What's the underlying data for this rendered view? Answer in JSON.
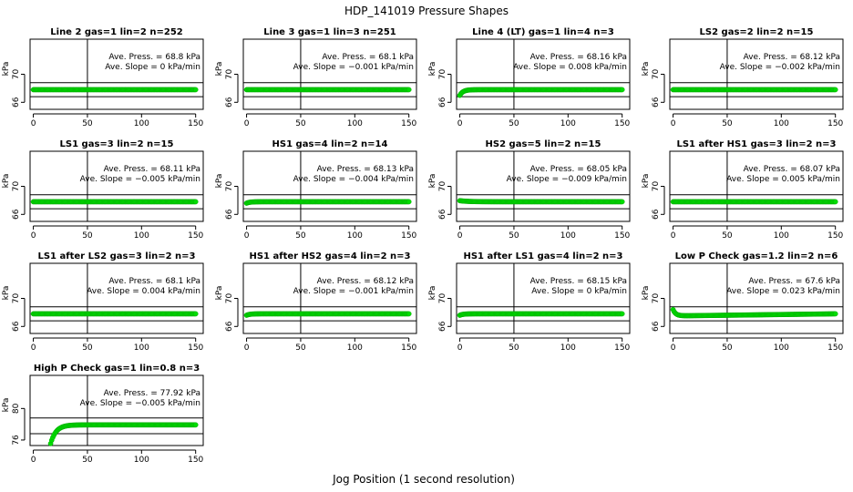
{
  "figure": {
    "title": "HDP_141019  Pressure Shapes",
    "xlabel": "Jog Position (1 second resolution)"
  },
  "colors": {
    "points": "#00dd00",
    "point_outline": "#00aa00",
    "lines": "#000000"
  },
  "chart_data": [
    {
      "type": "scatter",
      "title": "Line 2 gas=1 lin=2 n=252",
      "ylabel": "kPa",
      "xlim": [
        -3,
        157
      ],
      "ylim": [
        65,
        75
      ],
      "x_ticks": [
        0,
        50,
        100,
        150
      ],
      "y_ticks": [
        66,
        70
      ],
      "hlines": [
        68.8,
        66.8
      ],
      "vline": 50,
      "annotation": [
        "Ave. Press. =  68.8  kPa",
        "Ave. Slope = 0  kPa/min"
      ],
      "series": [
        {
          "x_start": 0,
          "x_end": 150,
          "x_step": 1,
          "y_start": 67.8,
          "y_end": 67.8,
          "transient": 0,
          "tau": 1
        }
      ]
    },
    {
      "type": "scatter",
      "title": "Line 3 gas=1 lin=3 n=251",
      "ylabel": "kPa",
      "xlim": [
        -3,
        157
      ],
      "ylim": [
        65,
        75
      ],
      "x_ticks": [
        0,
        50,
        100,
        150
      ],
      "y_ticks": [
        66,
        70
      ],
      "hlines": [
        68.8,
        66.8
      ],
      "vline": 50,
      "annotation": [
        "Ave. Press. = 68.1  kPa",
        "Ave. Slope = −0.001  kPa/min"
      ],
      "series": [
        {
          "x_start": 0,
          "x_end": 150,
          "x_step": 1,
          "y_start": 67.8,
          "y_end": 67.8,
          "transient": 0,
          "tau": 1
        }
      ]
    },
    {
      "type": "scatter",
      "title": "Line 4 (LT) gas=1 lin=4 n=3",
      "ylabel": "kPa",
      "xlim": [
        -3,
        157
      ],
      "ylim": [
        65,
        75
      ],
      "x_ticks": [
        0,
        50,
        100,
        150
      ],
      "y_ticks": [
        66,
        70
      ],
      "hlines": [
        68.8,
        66.8
      ],
      "vline": 50,
      "annotation": [
        "Ave. Press. = 68.16  kPa",
        "Ave. Slope = 0.008  kPa/min"
      ],
      "series": [
        {
          "x_start": 0,
          "x_end": 150,
          "x_step": 1,
          "y_start": 67.8,
          "y_end": 67.8,
          "transient": -0.8,
          "tau": 3
        }
      ]
    },
    {
      "type": "scatter",
      "title": "LS2 gas=2 lin=2 n=15",
      "ylabel": "kPa",
      "xlim": [
        -3,
        157
      ],
      "ylim": [
        65,
        75
      ],
      "x_ticks": [
        0,
        50,
        100,
        150
      ],
      "y_ticks": [
        66,
        70
      ],
      "hlines": [
        68.8,
        66.8
      ],
      "vline": 50,
      "annotation": [
        "Ave. Press. = 68.12  kPa",
        "Ave. Slope = −0.002  kPa/min"
      ],
      "series": [
        {
          "x_start": 0,
          "x_end": 150,
          "x_step": 1,
          "y_start": 67.8,
          "y_end": 67.8,
          "transient": 0,
          "tau": 1
        }
      ]
    },
    {
      "type": "scatter",
      "title": "LS1 gas=3 lin=2 n=15",
      "ylabel": "kPa",
      "xlim": [
        -3,
        157
      ],
      "ylim": [
        65,
        75
      ],
      "x_ticks": [
        0,
        50,
        100,
        150
      ],
      "y_ticks": [
        66,
        70
      ],
      "hlines": [
        68.8,
        66.8
      ],
      "vline": 50,
      "annotation": [
        "Ave. Press. = 68.11  kPa",
        "Ave. Slope = −0.005  kPa/min"
      ],
      "series": [
        {
          "x_start": 0,
          "x_end": 150,
          "x_step": 1,
          "y_start": 67.8,
          "y_end": 67.8,
          "transient": 0,
          "tau": 1
        }
      ]
    },
    {
      "type": "scatter",
      "title": "HS1 gas=4 lin=2 n=14",
      "ylabel": "kPa",
      "xlim": [
        -3,
        157
      ],
      "ylim": [
        65,
        75
      ],
      "x_ticks": [
        0,
        50,
        100,
        150
      ],
      "y_ticks": [
        66,
        70
      ],
      "hlines": [
        68.8,
        66.8
      ],
      "vline": 50,
      "annotation": [
        "Ave. Press. = 68.13  kPa",
        "Ave. Slope = −0.004  kPa/min"
      ],
      "series": [
        {
          "x_start": 0,
          "x_end": 150,
          "x_step": 1,
          "y_start": 67.8,
          "y_end": 67.8,
          "transient": -0.2,
          "tau": 3
        }
      ]
    },
    {
      "type": "scatter",
      "title": "HS2 gas=5 lin=2 n=15",
      "ylabel": "kPa",
      "xlim": [
        -3,
        157
      ],
      "ylim": [
        65,
        75
      ],
      "x_ticks": [
        0,
        50,
        100,
        150
      ],
      "y_ticks": [
        66,
        70
      ],
      "hlines": [
        68.8,
        66.8
      ],
      "vline": 50,
      "annotation": [
        "Ave. Press. = 68.05  kPa",
        "Ave. Slope = −0.009  kPa/min"
      ],
      "series": [
        {
          "x_start": 0,
          "x_end": 150,
          "x_step": 1,
          "y_start": 67.8,
          "y_end": 67.8,
          "transient": 0.15,
          "tau": 8
        }
      ]
    },
    {
      "type": "scatter",
      "title": "LS1 after HS1 gas=3 lin=2 n=3",
      "ylabel": "kPa",
      "xlim": [
        -3,
        157
      ],
      "ylim": [
        65,
        75
      ],
      "x_ticks": [
        0,
        50,
        100,
        150
      ],
      "y_ticks": [
        66,
        70
      ],
      "hlines": [
        68.8,
        66.8
      ],
      "vline": 50,
      "annotation": [
        "Ave. Press. = 68.07  kPa",
        "Ave. Slope = 0.005  kPa/min"
      ],
      "series": [
        {
          "x_start": 0,
          "x_end": 150,
          "x_step": 1,
          "y_start": 67.8,
          "y_end": 67.8,
          "transient": 0,
          "tau": 1
        }
      ]
    },
    {
      "type": "scatter",
      "title": "LS1 after LS2 gas=3 lin=2 n=3",
      "ylabel": "kPa",
      "xlim": [
        -3,
        157
      ],
      "ylim": [
        65,
        75
      ],
      "x_ticks": [
        0,
        50,
        100,
        150
      ],
      "y_ticks": [
        66,
        70
      ],
      "hlines": [
        68.8,
        66.8
      ],
      "vline": 50,
      "annotation": [
        "Ave. Press. = 68.1  kPa",
        "Ave. Slope = 0.004  kPa/min"
      ],
      "series": [
        {
          "x_start": 0,
          "x_end": 150,
          "x_step": 1,
          "y_start": 67.8,
          "y_end": 67.8,
          "transient": 0,
          "tau": 1
        }
      ]
    },
    {
      "type": "scatter",
      "title": "HS1 after HS2 gas=4 lin=2 n=3",
      "ylabel": "kPa",
      "xlim": [
        -3,
        157
      ],
      "ylim": [
        65,
        75
      ],
      "x_ticks": [
        0,
        50,
        100,
        150
      ],
      "y_ticks": [
        66,
        70
      ],
      "hlines": [
        68.8,
        66.8
      ],
      "vline": 50,
      "annotation": [
        "Ave. Press. = 68.12  kPa",
        "Ave. Slope = −0.001  kPa/min"
      ],
      "series": [
        {
          "x_start": 0,
          "x_end": 150,
          "x_step": 1,
          "y_start": 67.8,
          "y_end": 67.8,
          "transient": -0.2,
          "tau": 3
        }
      ]
    },
    {
      "type": "scatter",
      "title": "HS1 after LS1 gas=4 lin=2 n=3",
      "ylabel": "kPa",
      "xlim": [
        -3,
        157
      ],
      "ylim": [
        65,
        75
      ],
      "x_ticks": [
        0,
        50,
        100,
        150
      ],
      "y_ticks": [
        66,
        70
      ],
      "hlines": [
        68.8,
        66.8
      ],
      "vline": 50,
      "annotation": [
        "Ave. Press. = 68.15  kPa",
        "Ave. Slope = 0  kPa/min"
      ],
      "series": [
        {
          "x_start": 0,
          "x_end": 150,
          "x_step": 1,
          "y_start": 67.8,
          "y_end": 67.8,
          "transient": -0.2,
          "tau": 3
        }
      ]
    },
    {
      "type": "scatter",
      "title": "Low P Check gas=1.2 lin=2 n=6",
      "ylabel": "kPa",
      "xlim": [
        -3,
        157
      ],
      "ylim": [
        65,
        75
      ],
      "x_ticks": [
        0,
        50,
        100,
        150
      ],
      "y_ticks": [
        66,
        70
      ],
      "hlines": [
        68.8,
        66.8
      ],
      "vline": 50,
      "annotation": [
        "Ave. Press. = 67.6  kPa",
        "Ave. Slope = 0.023  kPa/min"
      ],
      "series": [
        {
          "x_start": 0,
          "x_end": 150,
          "x_step": 1,
          "y_start": 67.5,
          "y_end": 67.8,
          "transient": 0.9,
          "tau": 2.5
        }
      ]
    },
    {
      "type": "scatter",
      "title": "High P Check gas=1 lin=0.8 n=3",
      "ylabel": "kPa",
      "xlim": [
        -3,
        157
      ],
      "ylim": [
        75.3,
        84.2
      ],
      "x_ticks": [
        0,
        50,
        100,
        150
      ],
      "y_ticks": [
        76,
        80
      ],
      "hlines": [
        78.8,
        76.8
      ],
      "vline": 50,
      "annotation": [
        "Ave. Press. = 77.92  kPa",
        "Ave. Slope = −0.005  kPa/min"
      ],
      "series": [
        {
          "x_start": 15,
          "x_end": 150,
          "x_step": 1,
          "y_start": 77.92,
          "y_end": 77.92,
          "transient": -2.9,
          "tau": 5
        }
      ]
    }
  ]
}
